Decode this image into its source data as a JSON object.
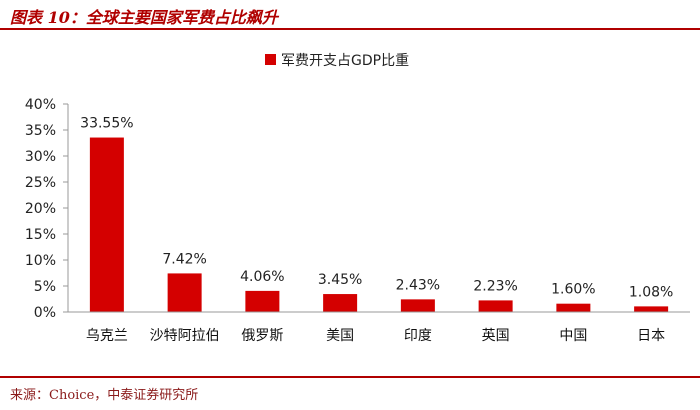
{
  "header": {
    "title": "图表 10：全球主要国家军费占比飙升"
  },
  "footer": {
    "source": "来源：Choice，中泰证券研究所"
  },
  "colors": {
    "accent": "#b00000",
    "bar": "#d40000",
    "axis": "#999999"
  },
  "chart_data": {
    "type": "bar",
    "title": "",
    "xlabel": "",
    "ylabel": "",
    "categories": [
      "乌克兰",
      "沙特阿拉伯",
      "俄罗斯",
      "美国",
      "印度",
      "英国",
      "中国",
      "日本"
    ],
    "series": [
      {
        "name": "军费开支占GDP比重",
        "values": [
          33.55,
          7.42,
          4.06,
          3.45,
          2.43,
          2.23,
          1.6,
          1.08
        ],
        "labels": [
          "33.55%",
          "7.42%",
          "4.06%",
          "3.45%",
          "2.43%",
          "2.23%",
          "1.60%",
          "1.08%"
        ]
      }
    ],
    "ylim": [
      0,
      40
    ],
    "yticks": [
      0,
      5,
      10,
      15,
      20,
      25,
      30,
      35,
      40
    ],
    "ytick_labels": [
      "0%",
      "5%",
      "10%",
      "15%",
      "20%",
      "25%",
      "30%",
      "35%",
      "40%"
    ],
    "grid": false,
    "legend_position": "top-center"
  }
}
